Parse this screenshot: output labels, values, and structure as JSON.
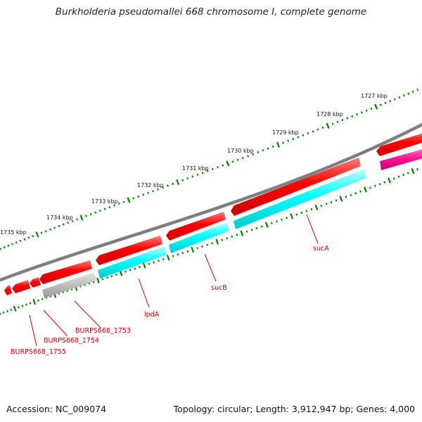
{
  "title": "Burkholderia pseudomallei 668 chromosome I, complete genome",
  "accession": "Accession: NC_009074",
  "topology": "Topology: circular; Length: 3,912,947 bp; Genes: 4,000",
  "scale_labels": [
    "1727 kbp",
    "1728 kbp",
    "1729 kbp",
    "1730 kbp",
    "1731 kbp",
    "1732 kbp",
    "1733 kbp",
    "1734 kbp",
    "1735 kbp"
  ],
  "gene_labels": [
    "sucA",
    "sucB",
    "lpdA",
    "BURPS668_1753",
    "BURPS668_1754",
    "BURPS668_1755"
  ],
  "colors": {
    "backbone": "#808080",
    "gene": "#ff0000",
    "cds_cyan": "#00ffff",
    "cds_grey": "#c0c0c0",
    "cds_pink": "#ff1493",
    "tick": "#008000",
    "label": "#d00000"
  }
}
